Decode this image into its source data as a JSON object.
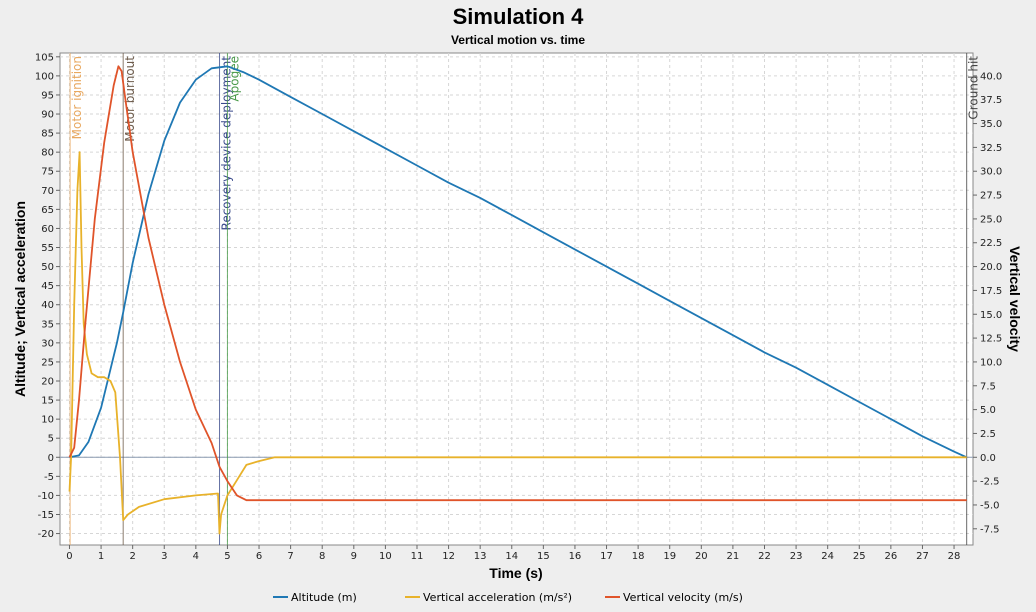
{
  "chart_data": {
    "type": "line",
    "title": "Simulation 4",
    "subtitle": "Vertical motion vs. time",
    "xlabel": "Time (s)",
    "ylabel_left": "Altitude; Vertical acceleration",
    "ylabel_right": "Vertical velocity",
    "xlim": [
      -0.3,
      28.6
    ],
    "ylim_left": [
      -23,
      106
    ],
    "ylim_right": [
      -9.2,
      42.4
    ],
    "x_ticks": [
      0,
      1,
      2,
      3,
      4,
      5,
      6,
      7,
      8,
      9,
      10,
      11,
      12,
      13,
      14,
      15,
      16,
      17,
      18,
      19,
      20,
      21,
      22,
      23,
      24,
      25,
      26,
      27,
      28
    ],
    "y_ticks_left": [
      -20,
      -15,
      -10,
      -5,
      0,
      5,
      10,
      15,
      20,
      25,
      30,
      35,
      40,
      45,
      50,
      55,
      60,
      65,
      70,
      75,
      80,
      85,
      90,
      95,
      100,
      105
    ],
    "y_ticks_right": [
      "-7.5",
      "-5.0",
      "-2.5",
      "0.0",
      "2.5",
      "5.0",
      "7.5",
      "10.0",
      "12.5",
      "15.0",
      "17.5",
      "20.0",
      "22.5",
      "25.0",
      "27.5",
      "30.0",
      "32.5",
      "35.0",
      "37.5",
      "40.0"
    ],
    "grid": true,
    "legend_position": "bottom",
    "events": [
      {
        "label": "Motor ignition",
        "t": 0.02,
        "color": "#e8a860"
      },
      {
        "label": "Motor burnout",
        "t": 1.7,
        "color": "#6e5c4c"
      },
      {
        "label": "Recovery device deployment",
        "t": 4.75,
        "color": "#3a4a8c"
      },
      {
        "label": "Apogee",
        "t": 5.0,
        "color": "#4a9a4a"
      },
      {
        "label": "Ground hit",
        "t": 28.4,
        "color": "#444444"
      }
    ],
    "series": [
      {
        "name": "Altitude (m)",
        "axis": "left",
        "color": "#1f78b4",
        "x": [
          0,
          0.3,
          0.6,
          1.0,
          1.5,
          1.7,
          2.0,
          2.5,
          3.0,
          3.5,
          4.0,
          4.5,
          5.0,
          5.5,
          6.0,
          7.0,
          8.0,
          9.0,
          10.0,
          11.0,
          12.0,
          13.0,
          14.0,
          15.0,
          16.0,
          17.0,
          18.0,
          19.0,
          20.0,
          21.0,
          22.0,
          23.0,
          24.0,
          25.0,
          26.0,
          27.0,
          28.0,
          28.4
        ],
        "y": [
          0,
          0.5,
          4,
          13,
          30,
          38,
          51,
          69,
          83,
          93,
          99,
          102,
          102.5,
          101,
          99,
          94.5,
          90,
          85.5,
          81,
          76.5,
          72,
          68,
          63.5,
          59,
          54.5,
          50,
          45.5,
          41,
          36.5,
          32,
          27.5,
          23.5,
          19,
          14.5,
          10,
          5.5,
          1.5,
          0
        ]
      },
      {
        "name": "Vertical acceleration (m/s²)",
        "axis": "left",
        "color": "#e8b22a",
        "x": [
          0,
          0.05,
          0.15,
          0.25,
          0.32,
          0.38,
          0.45,
          0.55,
          0.7,
          0.9,
          1.1,
          1.3,
          1.45,
          1.6,
          1.7,
          1.85,
          2.2,
          3.0,
          4.0,
          4.7,
          4.75,
          4.8,
          5.0,
          5.3,
          5.6,
          6.0,
          6.5,
          7.0,
          10,
          12,
          13,
          14,
          15,
          16,
          18,
          20,
          22,
          25,
          25.5,
          26,
          28,
          28.4
        ],
        "y": [
          -9,
          0,
          40,
          70,
          80,
          55,
          35,
          27,
          22,
          21,
          21,
          20,
          17,
          0,
          -16.5,
          -15,
          -13,
          -11,
          -10,
          -9.5,
          -20,
          -15,
          -10,
          -6,
          -2,
          -1,
          0,
          0,
          0,
          0,
          0,
          0,
          0,
          0,
          0,
          0,
          0,
          0,
          0,
          0,
          0,
          0
        ]
      },
      {
        "name": "Vertical velocity (m/s)",
        "axis": "right",
        "color": "#e0542a",
        "x": [
          0,
          0.15,
          0.3,
          0.5,
          0.8,
          1.1,
          1.4,
          1.55,
          1.65,
          1.75,
          2.0,
          2.5,
          3.0,
          3.5,
          4.0,
          4.5,
          4.75,
          5.0,
          5.3,
          5.6,
          6.0,
          8,
          10,
          12,
          14,
          16,
          18,
          20,
          22,
          24,
          26,
          28,
          28.4
        ],
        "y": [
          0,
          1,
          6,
          14,
          25,
          33,
          39,
          41,
          40.5,
          38,
          32,
          23,
          16,
          10,
          5,
          1.5,
          -1,
          -2.5,
          -4,
          -4.5,
          -4.5,
          -4.5,
          -4.5,
          -4.5,
          -4.5,
          -4.5,
          -4.5,
          -4.5,
          -4.5,
          -4.5,
          -4.5,
          -4.5,
          -4.5
        ]
      }
    ]
  }
}
